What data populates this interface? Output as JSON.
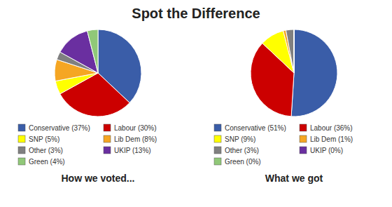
{
  "chart_data": [
    {
      "type": "pie",
      "title": "Spot the Difference",
      "subtitle": "How we voted...",
      "categories": [
        "Conservative (37%)",
        "Labour (30%)",
        "SNP (5%)",
        "Lib Dem (8%)",
        "Other (3%)",
        "UKIP (13%)",
        "Green (4%)"
      ],
      "values": [
        37,
        30,
        5,
        8,
        3,
        13,
        4
      ],
      "colors": [
        "#3a5da8",
        "#cc0000",
        "#ffff00",
        "#f5a623",
        "#808080",
        "#6a2fa0",
        "#90c878"
      ],
      "legend": "bottom"
    },
    {
      "type": "pie",
      "subtitle": "What we got",
      "categories": [
        "Conservative (51%)",
        "Labour (36%)",
        "SNP (9%)",
        "Lib Dem (1%)",
        "Other (3%)",
        "UKIP (0%)",
        "Green (0%)"
      ],
      "values": [
        51,
        36,
        9,
        1,
        3,
        0,
        0
      ],
      "colors": [
        "#3a5da8",
        "#cc0000",
        "#ffff00",
        "#f5a623",
        "#808080",
        "#6a2fa0",
        "#90c878"
      ],
      "legend": "bottom"
    }
  ]
}
